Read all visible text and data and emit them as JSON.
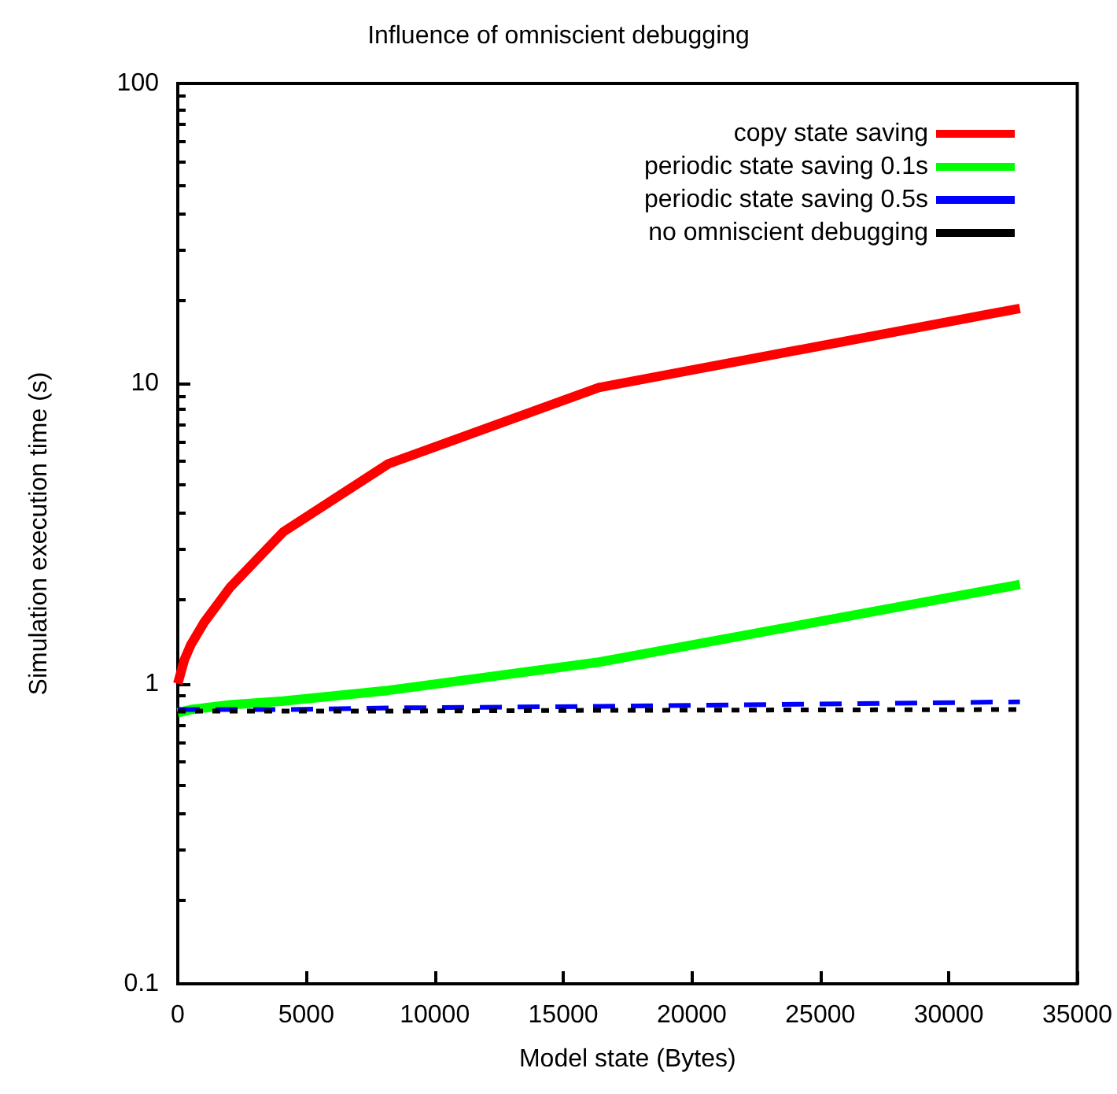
{
  "chart_data": {
    "type": "line",
    "title": "Influence of omniscient debugging",
    "xlabel": "Model state (Bytes)",
    "ylabel": "Simulation execution time (s)",
    "log": "y",
    "xlim": [
      0,
      35000
    ],
    "xticks": [
      0,
      5000,
      10000,
      15000,
      20000,
      25000,
      30000,
      35000
    ],
    "ylim": [
      0.1,
      100
    ],
    "yticks": [
      0.1,
      1,
      10,
      100
    ],
    "grid": false,
    "legend": "top right",
    "marker": "none",
    "x": [
      0,
      256,
      512,
      1024,
      2048,
      4096,
      8192,
      16384,
      32768
    ],
    "series": [
      {
        "name": "copy state saving",
        "color": "#ff0000",
        "line_style": "solid",
        "values": [
          1.0,
          1.2,
          1.35,
          1.6,
          2.1,
          3.2,
          5.4,
          9.7,
          17.8
        ]
      },
      {
        "name": "periodic state saving 0.1s",
        "color": "#00ff00",
        "line_style": "solid",
        "values": [
          0.8,
          0.81,
          0.82,
          0.83,
          0.85,
          0.875,
          0.95,
          1.18,
          2.14
        ]
      },
      {
        "name": "periodic state saving 0.5s",
        "color": "#0000ff",
        "line_style": "dashed",
        "values": [
          0.82,
          0.82,
          0.82,
          0.82,
          0.82,
          0.82,
          0.83,
          0.84,
          0.87
        ]
      },
      {
        "name": "no omniscient debugging",
        "color": "#000000",
        "line_style": "dotted",
        "values": [
          0.81,
          0.81,
          0.81,
          0.81,
          0.81,
          0.81,
          0.81,
          0.815,
          0.82
        ]
      }
    ]
  }
}
